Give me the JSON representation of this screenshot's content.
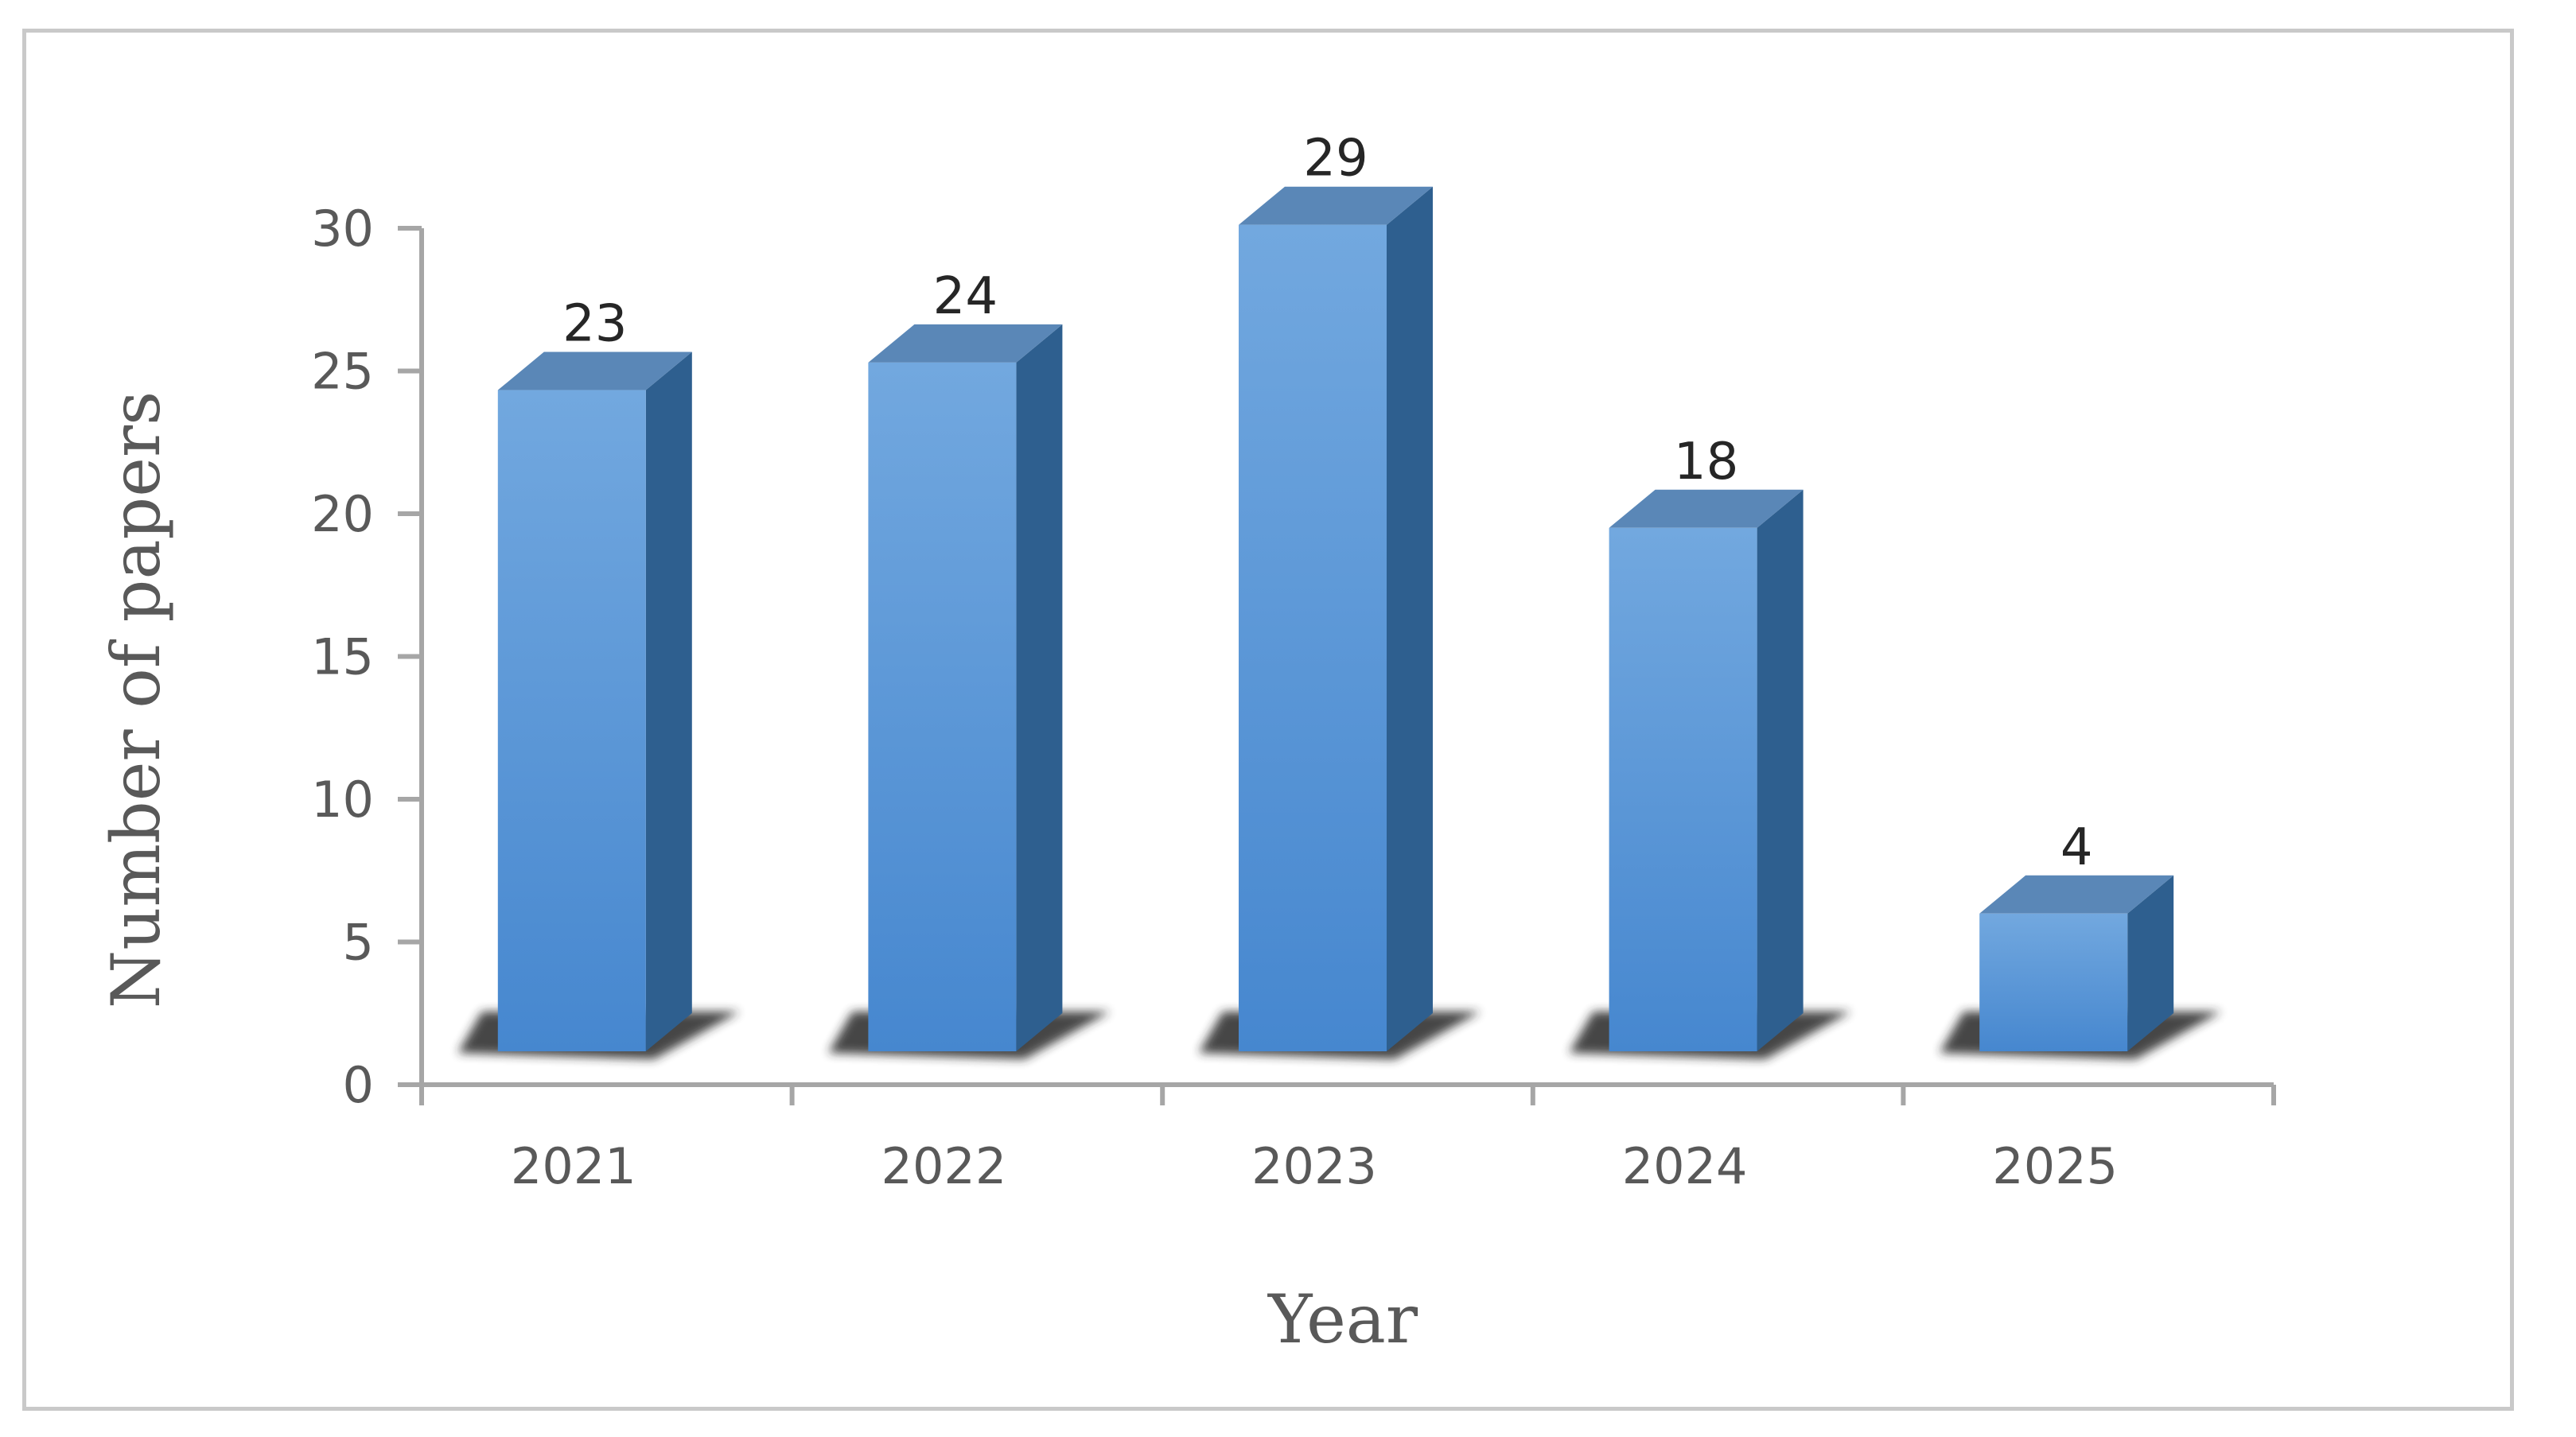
{
  "chart_data": {
    "type": "bar",
    "style": "3d-column",
    "categories": [
      "2021",
      "2022",
      "2023",
      "2024",
      "2025"
    ],
    "values": [
      23,
      24,
      29,
      18,
      4
    ],
    "data_labels": [
      "23",
      "24",
      "29",
      "18",
      "4"
    ],
    "xlabel": "Year",
    "ylabel": "Number of papers",
    "ylim": [
      0,
      30
    ],
    "yticks": [
      0,
      5,
      10,
      15,
      20,
      25,
      30
    ],
    "grid": false,
    "legend": "none",
    "colors": {
      "bar_front_top": "#72a8df",
      "bar_front_bottom": "#4687cf",
      "bar_side": "#2e5f8f",
      "bar_top": "#5a87b7",
      "shadow": "#262626",
      "axis": "#a6a6a6"
    }
  }
}
